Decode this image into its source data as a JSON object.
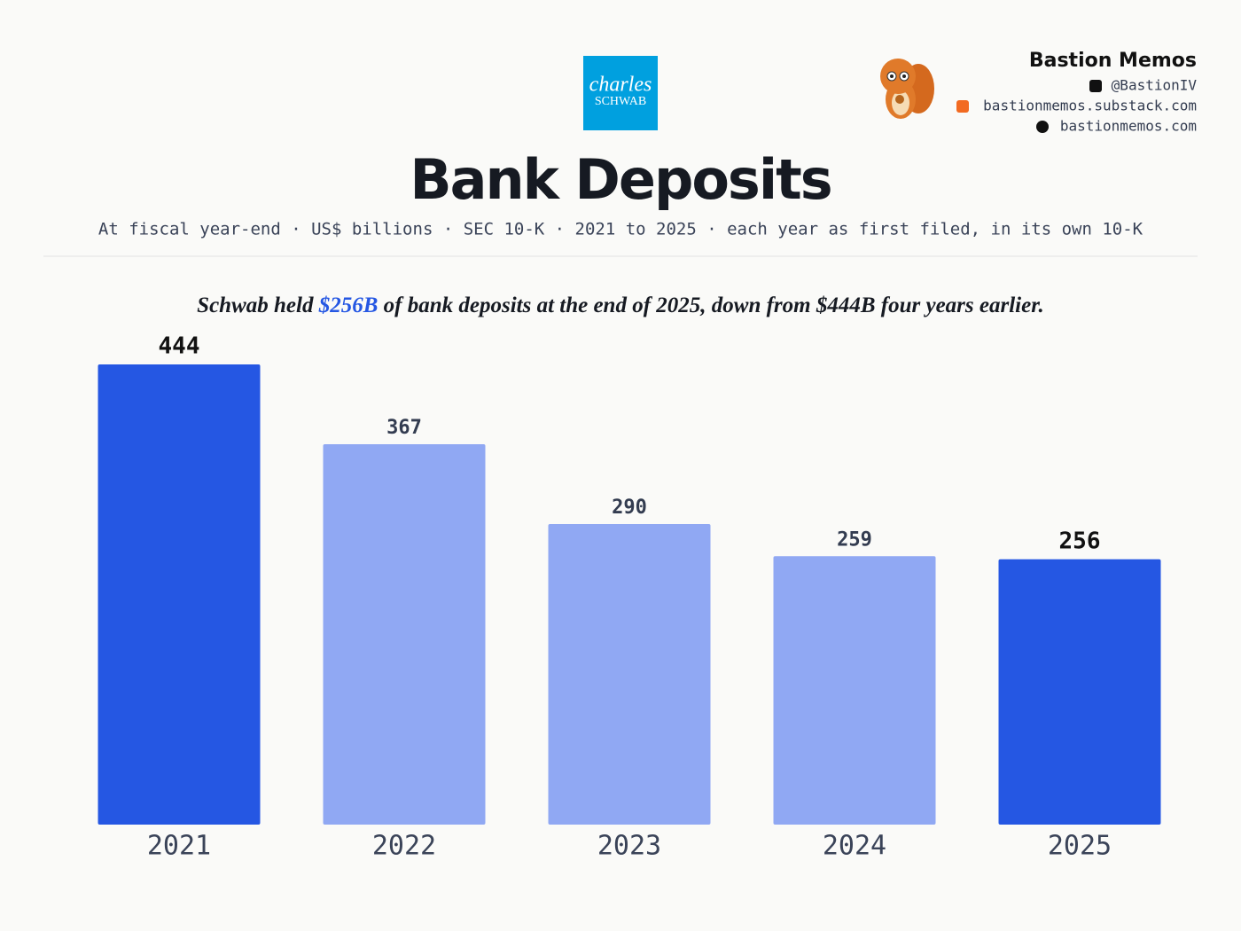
{
  "branding": {
    "logo_line1": "charles",
    "logo_line2": "SCHWAB",
    "author": "Bastion Memos",
    "handle": "@BastionIV",
    "substack": "bastionmemos.substack.com",
    "website": "bastionmemos.com"
  },
  "chart_data": {
    "type": "bar",
    "title": "Bank Deposits",
    "subtitle": "At fiscal year-end · US$ billions · SEC 10-K · 2021 to 2025 · each year as first filed, in its own 10-K",
    "annotation": [
      "Schwab held ",
      "$256B",
      " of bank deposits at the end of 2025, down from $444B four years earlier."
    ],
    "categories": [
      "2021",
      "2022",
      "2023",
      "2024",
      "2025"
    ],
    "values": [
      444,
      367,
      290,
      259,
      256
    ],
    "colors": [
      "#2557e3",
      "#90a8f3",
      "#90a8f3",
      "#90a8f3",
      "#2557e3"
    ],
    "highlight_color": "#2557e3"
  }
}
